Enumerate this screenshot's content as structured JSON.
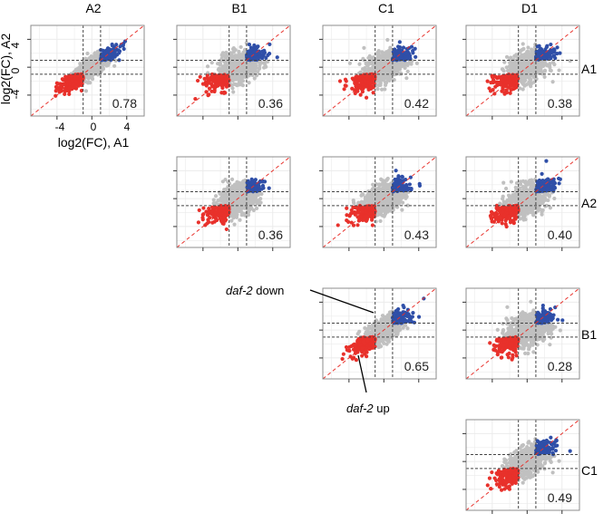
{
  "column_headers": [
    "A2",
    "B1",
    "C1",
    "D1"
  ],
  "row_labels": [
    "A1",
    "A2",
    "B1",
    "C1"
  ],
  "corner_axes": {
    "xlabel": "log2(FC), A1",
    "ylabel": "log2(FC), A2",
    "ticks": [
      "-4",
      "0",
      "4"
    ],
    "tick_values": [
      -4,
      0,
      4
    ],
    "range": [
      -7,
      6
    ]
  },
  "annotations": {
    "down": {
      "italic": "daf-2",
      "text": " down"
    },
    "up": {
      "italic": "daf-2",
      "text": " up"
    }
  },
  "colors": {
    "up": "#e8312b",
    "down": "#2f4fa8",
    "neutral": "#c0c0c0",
    "diagonal": "#e8312b",
    "threshold": "#444444",
    "grid": "#ebebeb",
    "panel_border": "#8c8c8c"
  },
  "chart_data": [
    {
      "type": "scatter",
      "pair": [
        "A1",
        "A2"
      ],
      "r_label": "0.78",
      "r": 0.78,
      "x_threshold": [
        -1,
        1
      ],
      "y_threshold": [
        -1,
        1
      ]
    },
    {
      "type": "scatter",
      "pair": [
        "A1",
        "B1"
      ],
      "r_label": "0.36",
      "r": 0.36,
      "x_threshold": [
        -1,
        1
      ],
      "y_threshold": [
        -1,
        1
      ]
    },
    {
      "type": "scatter",
      "pair": [
        "A1",
        "C1"
      ],
      "r_label": "0.42",
      "r": 0.42,
      "x_threshold": [
        -1,
        1
      ],
      "y_threshold": [
        -1,
        1
      ]
    },
    {
      "type": "scatter",
      "pair": [
        "A1",
        "D1"
      ],
      "r_label": "0.38",
      "r": 0.38,
      "x_threshold": [
        -1,
        1
      ],
      "y_threshold": [
        -1,
        1
      ]
    },
    {
      "type": "scatter",
      "pair": [
        "A2",
        "B1"
      ],
      "r_label": "0.36",
      "r": 0.36,
      "x_threshold": [
        -1,
        1
      ],
      "y_threshold": [
        -1,
        1
      ]
    },
    {
      "type": "scatter",
      "pair": [
        "A2",
        "C1"
      ],
      "r_label": "0.43",
      "r": 0.43,
      "x_threshold": [
        -1,
        1
      ],
      "y_threshold": [
        -1,
        1
      ]
    },
    {
      "type": "scatter",
      "pair": [
        "A2",
        "D1"
      ],
      "r_label": "0.40",
      "r": 0.4,
      "x_threshold": [
        -1,
        1
      ],
      "y_threshold": [
        -1,
        1
      ]
    },
    {
      "type": "scatter",
      "pair": [
        "B1",
        "C1"
      ],
      "r_label": "0.65",
      "r": 0.65,
      "x_threshold": [
        -1,
        1
      ],
      "y_threshold": [
        -1,
        1
      ]
    },
    {
      "type": "scatter",
      "pair": [
        "B1",
        "D1"
      ],
      "r_label": "0.28",
      "r": 0.28,
      "x_threshold": [
        -1,
        1
      ],
      "y_threshold": [
        -1,
        1
      ]
    },
    {
      "type": "scatter",
      "pair": [
        "C1",
        "D1"
      ],
      "r_label": "0.49",
      "r": 0.49,
      "x_threshold": [
        -1,
        1
      ],
      "y_threshold": [
        -1,
        1
      ]
    }
  ]
}
